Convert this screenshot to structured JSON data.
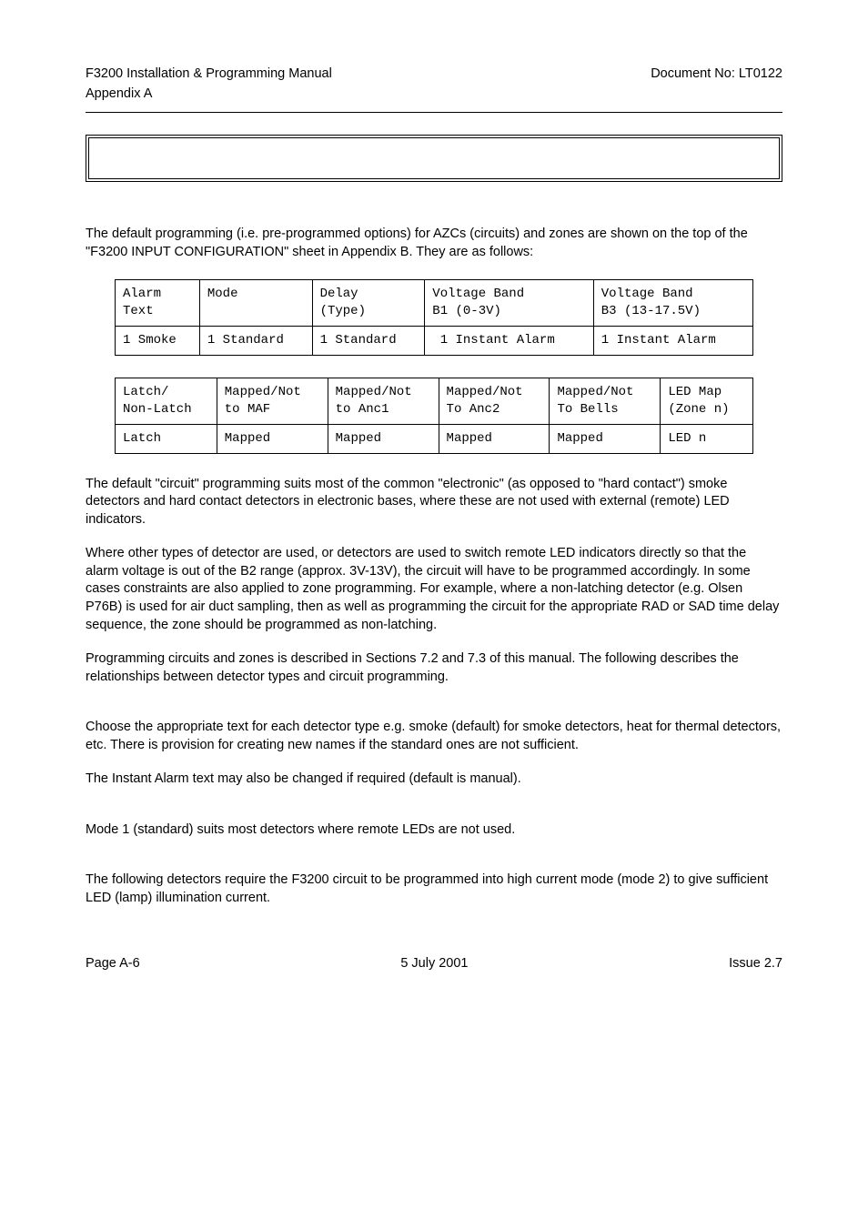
{
  "header": {
    "left1": "F3200 Installation & Programming Manual",
    "right1": "Document No: LT0122",
    "left2": "Appendix A"
  },
  "intro": {
    "p1": "The default programming (i.e. pre-programmed options) for AZCs (circuits) and zones are shown on the top of the \"F3200 INPUT CONFIGURATION\" sheet in Appendix B.  They are as follows:"
  },
  "table1": {
    "r1c1": "Alarm\nText",
    "r1c2": "Mode",
    "r1c3": "Delay\n(Type)",
    "r1c4": "Voltage Band\nB1 (0-3V)",
    "r1c5": "Voltage Band\nB3 (13-17.5V)",
    "r2c1": "1 Smoke",
    "r2c2": "1 Standard",
    "r2c3": "1 Standard",
    "r2c4": " 1 Instant Alarm",
    "r2c5": "1 Instant Alarm"
  },
  "table2": {
    "r1c1": "Latch/\nNon-Latch",
    "r1c2": "Mapped/Not\nto MAF",
    "r1c3": "Mapped/Not\nto Anc1",
    "r1c4": "Mapped/Not\nTo Anc2",
    "r1c5": "Mapped/Not\nTo Bells",
    "r1c6": "LED Map\n(Zone n)",
    "r2c1": "Latch",
    "r2c2": "Mapped",
    "r2c3": "Mapped",
    "r2c4": "Mapped",
    "r2c5": "Mapped",
    "r2c6": "LED n"
  },
  "body": {
    "p2": "The default \"circuit\" programming suits most of the common \"electronic\" (as opposed to \"hard contact\") smoke detectors and hard contact detectors in electronic bases, where these are not used with external (remote) LED indicators.",
    "p3": "Where other types of detector are used, or detectors are used to switch remote LED indicators directly so that the alarm voltage is out of the B2 range (approx. 3V-13V), the circuit will have to be programmed accordingly.  In some cases constraints are also applied to zone programming.  For example, where a non-latching detector (e.g. Olsen P76B) is used for air duct sampling, then as well as programming the circuit for the appropriate RAD or SAD time delay sequence, the zone should be programmed as non-latching.",
    "p4": "Programming circuits and zones is described in Sections 7.2 and 7.3 of this manual.  The following describes the relationships between detector types and circuit programming.",
    "p5": "Choose the appropriate text for each detector type e.g. smoke (default) for smoke detectors, heat for thermal detectors, etc.  There is provision for creating new names if the standard ones are not sufficient.",
    "p6": "The Instant Alarm text may also be changed if required (default is manual).",
    "p7": "Mode 1 (standard) suits most detectors where remote LEDs are not used.",
    "p8": "The following detectors require the F3200 circuit to be programmed into high current mode (mode 2) to give sufficient LED (lamp) illumination current."
  },
  "footer": {
    "left": "Page A-6",
    "center": "5 July 2001",
    "right": "Issue 2.7"
  }
}
